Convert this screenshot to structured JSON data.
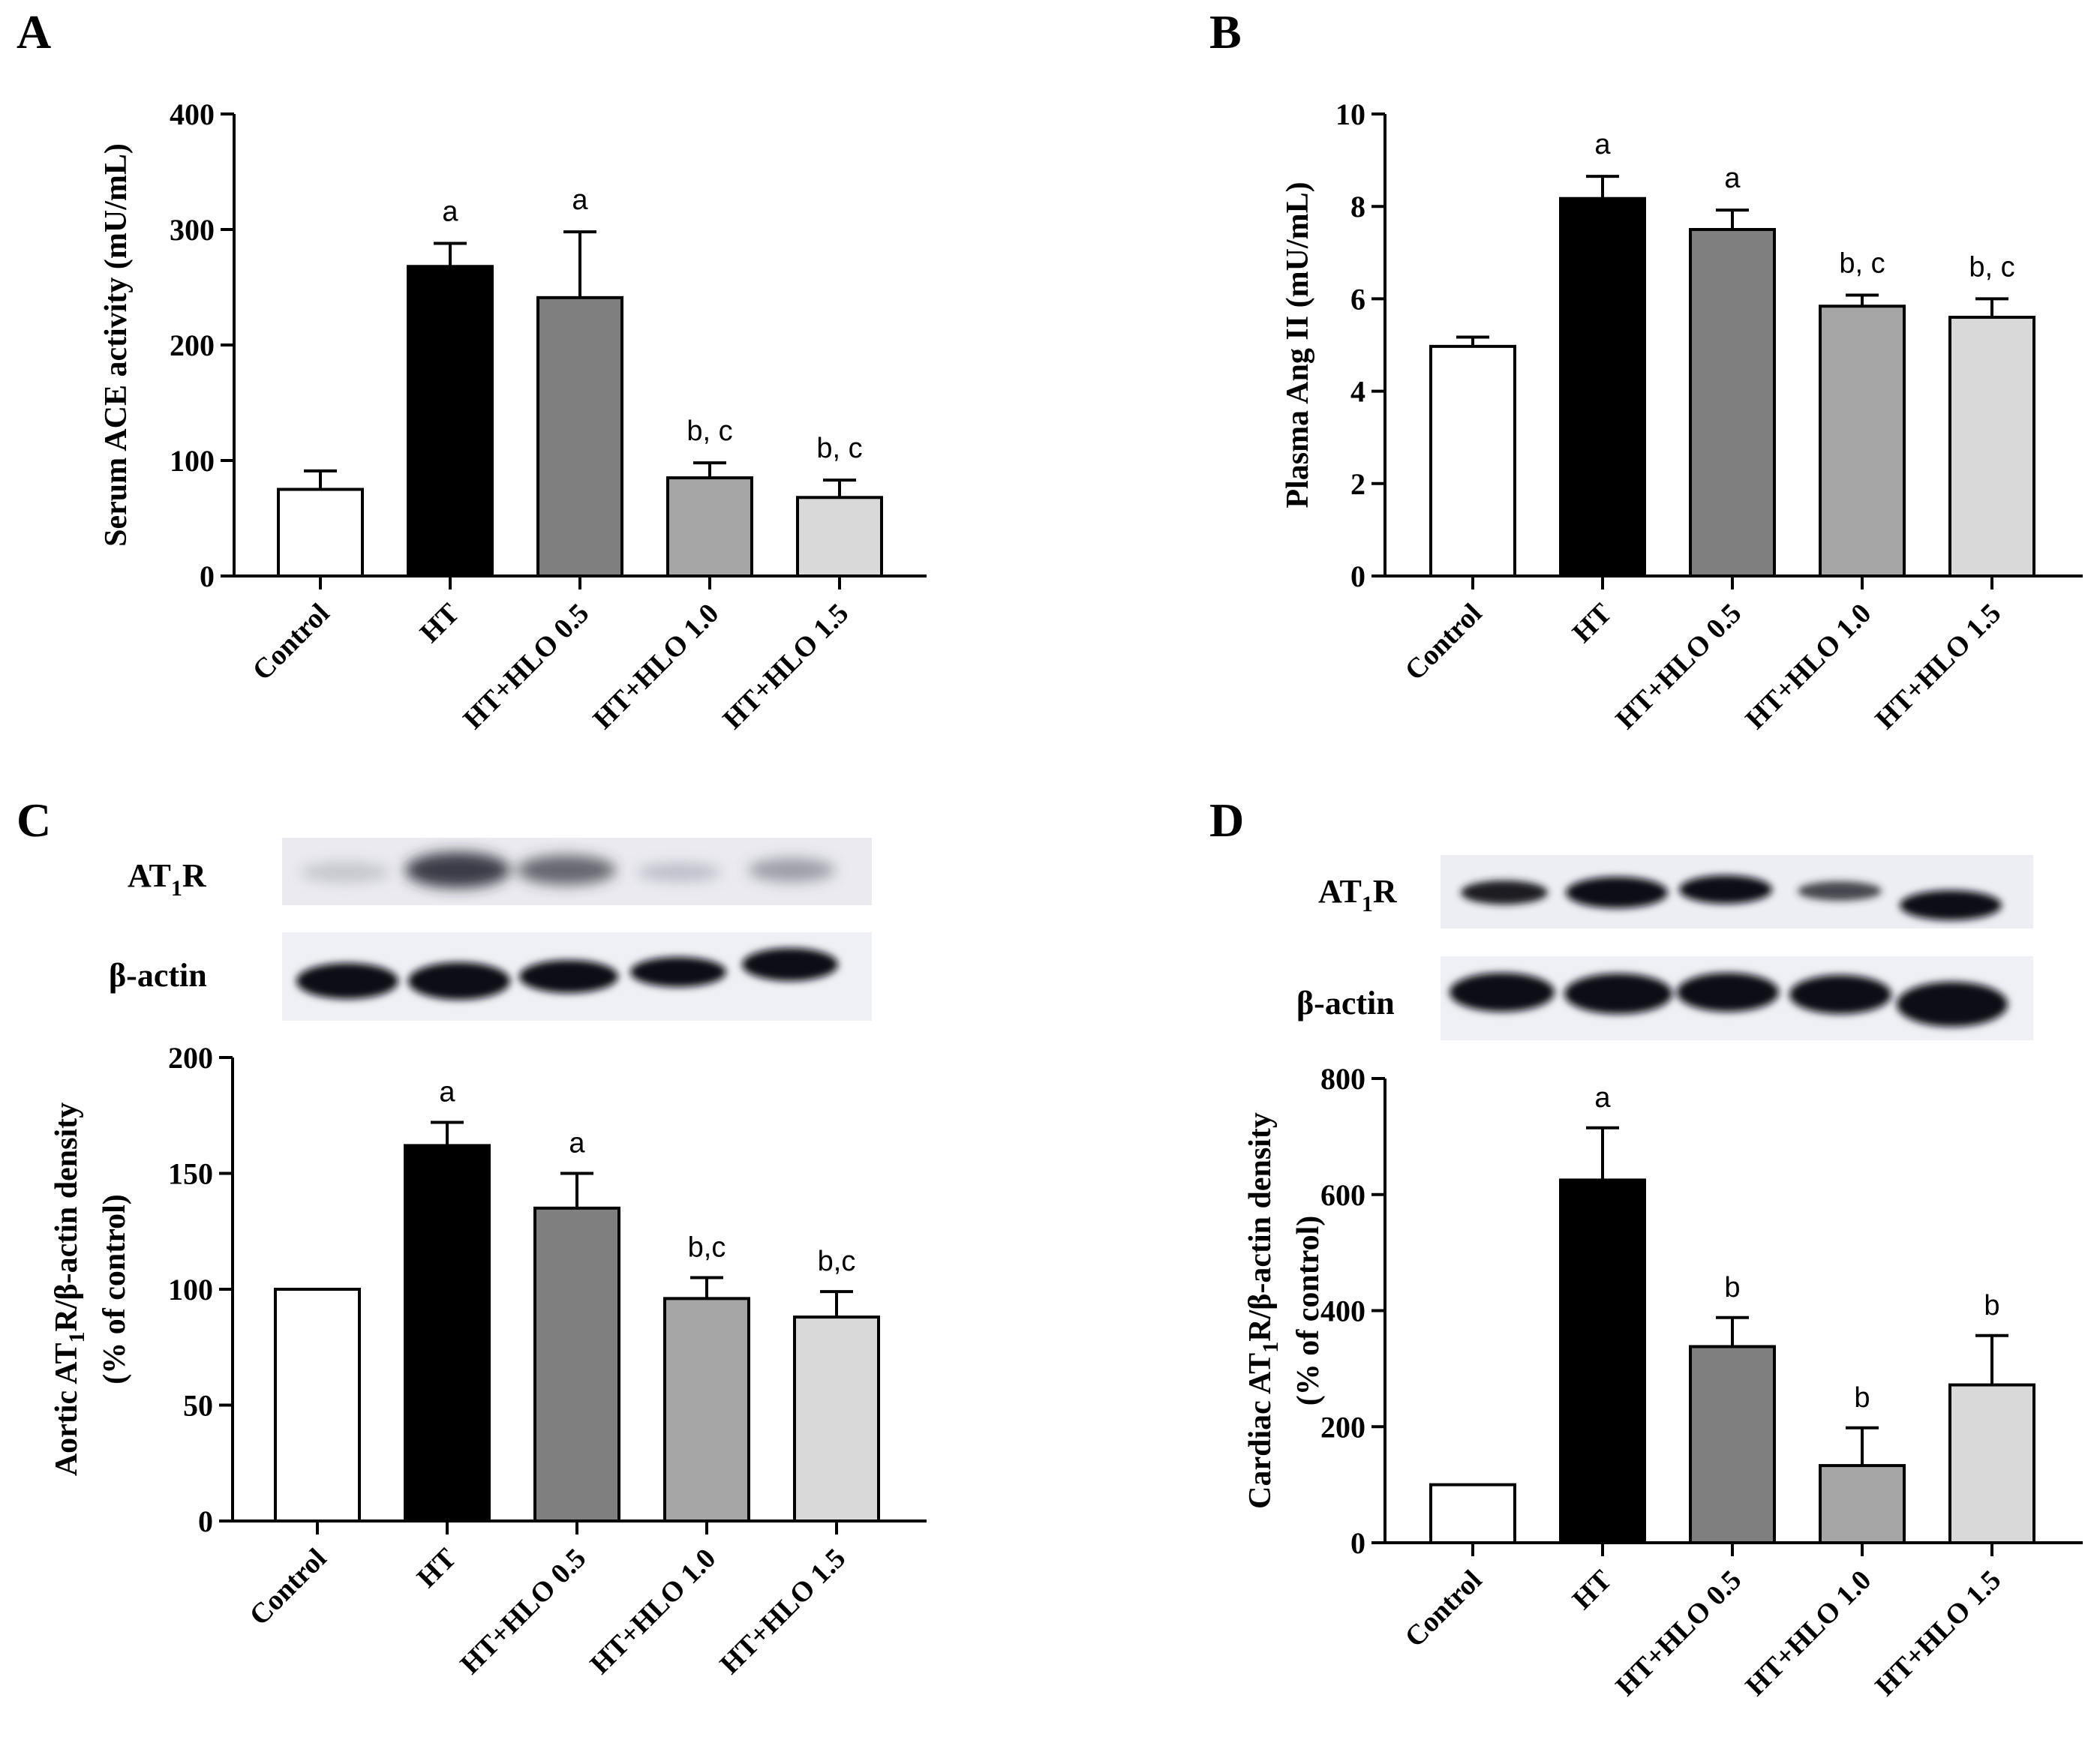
{
  "chart_data": [
    {
      "panel": "A",
      "type": "bar",
      "categories": [
        "Control",
        "HT",
        "HT+HLO 0.5",
        "HT+HLO 1.0",
        "HT+HLO 1.5"
      ],
      "values": [
        75,
        268,
        241,
        85,
        68
      ],
      "errors": [
        16,
        20,
        57,
        13,
        15
      ],
      "significance": [
        "",
        "a",
        "a",
        "b, c",
        "b, c"
      ],
      "colors": [
        "#ffffff",
        "#000000",
        "#7f7f7f",
        "#a6a6a6",
        "#d9d9d9"
      ],
      "ylabel": "Serum ACE activity (mU/mL)",
      "ylim": [
        0,
        400
      ],
      "yticks": [
        0,
        100,
        200,
        300,
        400
      ]
    },
    {
      "panel": "B",
      "type": "bar",
      "categories": [
        "Control",
        "HT",
        "HT+HLO 0.5",
        "HT+HLO 1.0",
        "HT+HLO 1.5"
      ],
      "values": [
        4.97,
        8.17,
        7.5,
        5.84,
        5.6
      ],
      "errors": [
        0.2,
        0.48,
        0.42,
        0.24,
        0.4
      ],
      "significance": [
        "",
        "a",
        "a",
        "b, c",
        "b, c"
      ],
      "colors": [
        "#ffffff",
        "#000000",
        "#7f7f7f",
        "#a6a6a6",
        "#d9d9d9"
      ],
      "ylabel": "Plasma Ang II (mU/mL)",
      "ylim": [
        0,
        10
      ],
      "yticks": [
        0,
        2,
        4,
        6,
        8,
        10
      ]
    },
    {
      "panel": "C",
      "type": "bar",
      "categories": [
        "Control",
        "HT",
        "HT+HLO 0.5",
        "HT+HLO 1.0",
        "HT+HLO 1.5"
      ],
      "values": [
        100,
        162,
        135,
        96,
        88
      ],
      "errors": [
        0,
        10,
        15,
        9,
        11
      ],
      "significance": [
        "",
        "a",
        "a",
        "b,c",
        "b,c"
      ],
      "colors": [
        "#ffffff",
        "#000000",
        "#7f7f7f",
        "#a6a6a6",
        "#d9d9d9"
      ],
      "ylabel": "Aortic AT₁R/β-actin density",
      "ylabel2": "(% of control)",
      "ylim": [
        0,
        200
      ],
      "yticks": [
        0,
        50,
        100,
        150,
        200
      ],
      "blot_labels": [
        "AT₁R",
        "β-actin"
      ]
    },
    {
      "panel": "D",
      "type": "bar",
      "categories": [
        "Control",
        "HT",
        "HT+HLO 0.5",
        "HT+HLO 1.0",
        "HT+HLO 1.5"
      ],
      "values": [
        100,
        625,
        338,
        133,
        272
      ],
      "errors": [
        0,
        90,
        50,
        65,
        85
      ],
      "significance": [
        "",
        "a",
        "b",
        "b",
        "b"
      ],
      "colors": [
        "#ffffff",
        "#000000",
        "#7f7f7f",
        "#a6a6a6",
        "#d9d9d9"
      ],
      "ylabel": "Cardiac AT₁R/β-actin density",
      "ylabel2": "(% of control)",
      "ylim": [
        0,
        800
      ],
      "yticks": [
        0,
        200,
        400,
        600,
        800
      ],
      "blot_labels": [
        "AT₁R",
        "β-actin"
      ]
    }
  ]
}
